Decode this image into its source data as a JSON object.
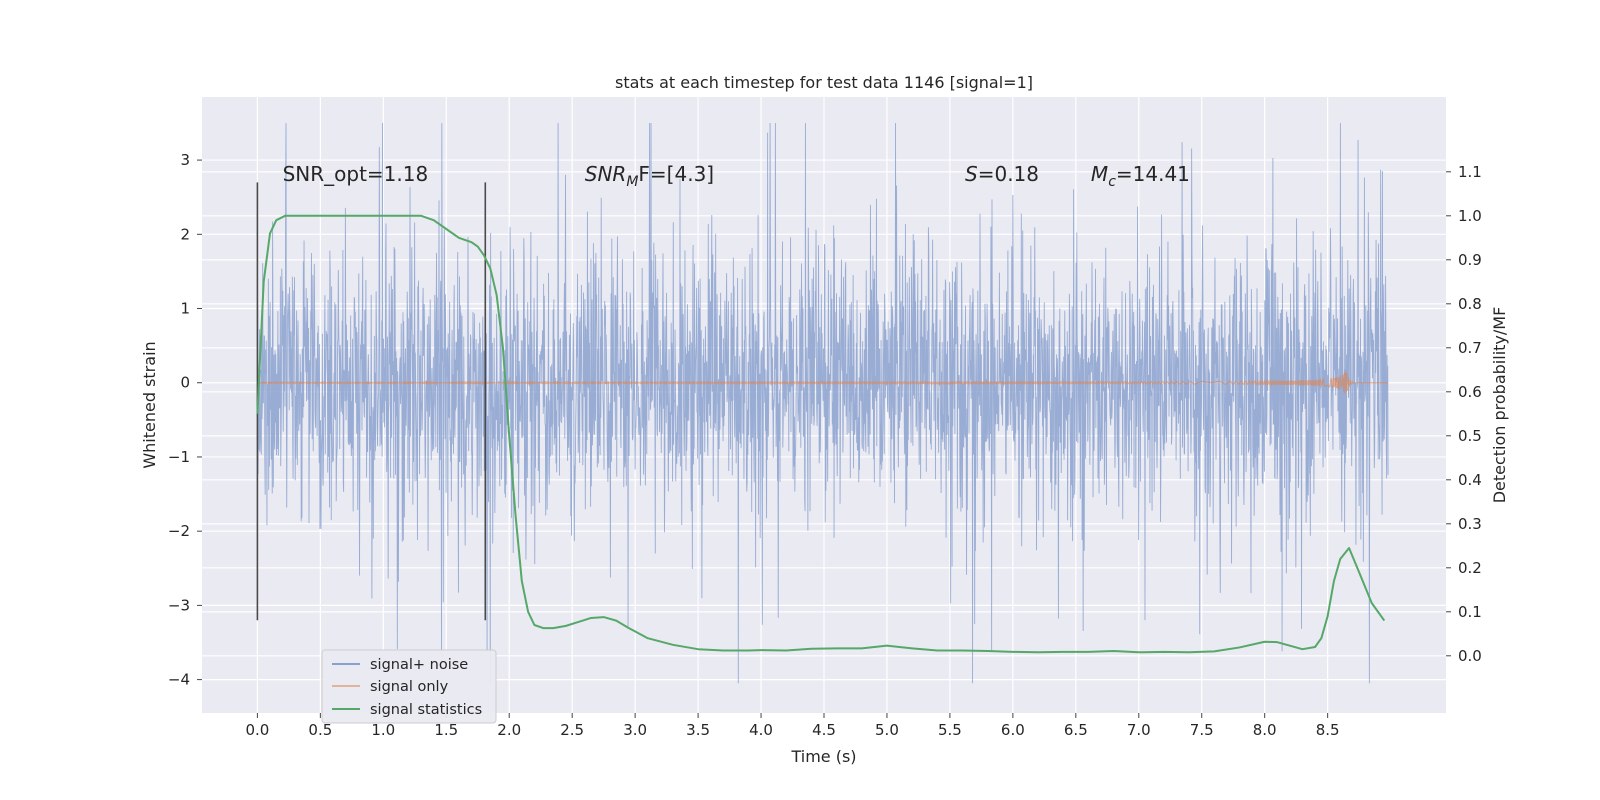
{
  "chart_data": {
    "type": "line",
    "title": "stats at each timestep for test data 1146 [signal=1]",
    "xlabel": "Time (s)",
    "ylabel": "Whitened strain",
    "y2label": "Detection probability/MF",
    "xlim": [
      -0.44,
      9.44
    ],
    "ylim": [
      -4.45,
      3.85
    ],
    "y2lim": [
      -0.13,
      1.27
    ],
    "xticks": [
      0.0,
      0.5,
      1.0,
      1.5,
      2.0,
      2.5,
      3.0,
      3.5,
      4.0,
      4.5,
      5.0,
      5.5,
      6.0,
      6.5,
      7.0,
      7.5,
      8.0,
      8.5
    ],
    "xtick_labels": [
      "0.0",
      "0.5",
      "1.0",
      "1.5",
      "2.0",
      "2.5",
      "3.0",
      "3.5",
      "4.0",
      "4.5",
      "5.0",
      "5.5",
      "6.0",
      "6.5",
      "7.0",
      "7.5",
      "8.0",
      "8.5"
    ],
    "yticks": [
      3,
      2,
      1,
      0,
      -1,
      -2,
      -3,
      -4
    ],
    "ytick_labels": [
      "3",
      "2",
      "1",
      "0",
      "−1",
      "−2",
      "−3",
      "−4"
    ],
    "y2ticks": [
      1.1,
      1.0,
      0.9,
      0.8,
      0.7,
      0.6,
      0.5,
      0.4,
      0.3,
      0.2,
      0.1,
      0.0
    ],
    "y2tick_labels": [
      "1.1",
      "1.0",
      "0.9",
      "0.8",
      "0.7",
      "0.6",
      "0.5",
      "0.4",
      "0.3",
      "0.2",
      "0.1",
      "0.0"
    ],
    "grid": true,
    "legend_position": "lower-left",
    "colors": {
      "noise": "#8aa1cf",
      "signal": "#dd8452",
      "stats": "#55a868",
      "background": "#eaeaf2",
      "vline": "#4a4a4a"
    },
    "series": [
      {
        "name": "signal+ noise",
        "kind": "noise",
        "x_range": [
          0.0,
          8.98
        ],
        "typical_range": [
          -1.3,
          1.3
        ],
        "peak_max": 3.5,
        "peak_min": -4.05
      },
      {
        "name": "signal only",
        "kind": "chirp",
        "x_range": [
          0.0,
          8.98
        ],
        "merger_time": 8.65,
        "peak_amplitude": 0.2
      },
      {
        "name": "signal statistics",
        "kind": "line",
        "axis": "right",
        "x": [
          0.0,
          0.05,
          0.1,
          0.15,
          0.22,
          0.3,
          0.5,
          0.8,
          1.0,
          1.2,
          1.3,
          1.4,
          1.5,
          1.6,
          1.7,
          1.75,
          1.8,
          1.85,
          1.9,
          1.95,
          2.0,
          2.05,
          2.1,
          2.15,
          2.2,
          2.27,
          2.35,
          2.45,
          2.55,
          2.65,
          2.75,
          2.85,
          2.95,
          3.1,
          3.3,
          3.5,
          3.7,
          3.9,
          4.0,
          4.2,
          4.4,
          4.6,
          4.8,
          5.0,
          5.2,
          5.4,
          5.6,
          5.8,
          6.0,
          6.2,
          6.4,
          6.6,
          6.8,
          7.0,
          7.2,
          7.4,
          7.6,
          7.8,
          8.0,
          8.1,
          8.2,
          8.3,
          8.4,
          8.45,
          8.5,
          8.55,
          8.6,
          8.67,
          8.75,
          8.85,
          8.95
        ],
        "y": [
          0.55,
          0.85,
          0.96,
          0.99,
          1.0,
          1.0,
          1.0,
          1.0,
          1.0,
          1.0,
          1.0,
          0.99,
          0.97,
          0.95,
          0.94,
          0.93,
          0.91,
          0.88,
          0.82,
          0.7,
          0.5,
          0.32,
          0.17,
          0.1,
          0.07,
          0.063,
          0.063,
          0.068,
          0.077,
          0.086,
          0.088,
          0.08,
          0.063,
          0.04,
          0.025,
          0.015,
          0.012,
          0.012,
          0.013,
          0.012,
          0.016,
          0.017,
          0.017,
          0.023,
          0.017,
          0.012,
          0.012,
          0.011,
          0.009,
          0.008,
          0.009,
          0.009,
          0.011,
          0.008,
          0.009,
          0.008,
          0.01,
          0.019,
          0.032,
          0.031,
          0.023,
          0.015,
          0.02,
          0.04,
          0.09,
          0.17,
          0.22,
          0.245,
          0.19,
          0.12,
          0.08
        ]
      }
    ],
    "vlines": [
      {
        "x": 0.0,
        "ymin": -3.2,
        "ymax": 2.7
      },
      {
        "x": 1.81,
        "ymin": -3.2,
        "ymax": 2.7
      }
    ],
    "annotations": [
      {
        "id": "snr-opt",
        "text": "SNR_opt=1.18",
        "x": 0.2,
        "y": 2.72
      },
      {
        "id": "snr-mf",
        "main": "SNR",
        "sub": "M",
        "rest": "F=[4.3]",
        "x": 2.6,
        "y": 2.72
      },
      {
        "id": "spin",
        "main": "S",
        "rest": "=0.18",
        "x": 5.62,
        "y": 2.72
      },
      {
        "id": "chirp-mass",
        "main": "M",
        "sub": "c",
        "rest": "=14.41",
        "x": 6.62,
        "y": 2.72
      }
    ]
  }
}
